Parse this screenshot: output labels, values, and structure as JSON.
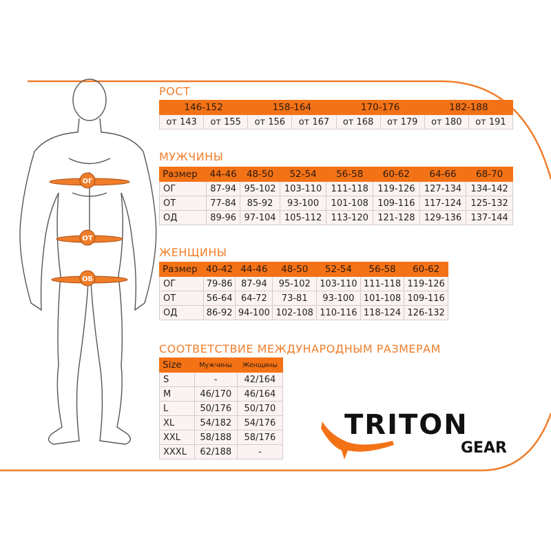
{
  "colors": {
    "accent": "#f47216",
    "cell": "#fbf3f2",
    "figure": "#555555"
  },
  "figure": {
    "bands": [
      "ОГ",
      "ОТ",
      "ОБ"
    ]
  },
  "height": {
    "title": "РОСТ",
    "ranges": [
      "146-152",
      "158-164",
      "170-176",
      "182-188"
    ],
    "values": [
      "от 143",
      "от 155",
      "от 156",
      "от 167",
      "от 168",
      "от 179",
      "от 180",
      "от 191"
    ]
  },
  "men": {
    "title": "МУЖЧИНЫ",
    "header": [
      "Размер",
      "44-46",
      "48-50",
      "52-54",
      "56-58",
      "60-62",
      "64-66",
      "68-70"
    ],
    "rows": [
      [
        "ОГ",
        "87-94",
        "95-102",
        "103-110",
        "111-118",
        "119-126",
        "127-134",
        "134-142"
      ],
      [
        "ОТ",
        "77-84",
        "85-92",
        "93-100",
        "101-108",
        "109-116",
        "117-124",
        "125-132"
      ],
      [
        "ОД",
        "89-96",
        "97-104",
        "105-112",
        "113-120",
        "121-128",
        "129-136",
        "137-144"
      ]
    ]
  },
  "women": {
    "title": "ЖЕНЩИНЫ",
    "header": [
      "Размер",
      "40-42",
      "44-46",
      "48-50",
      "52-54",
      "56-58",
      "60-62"
    ],
    "rows": [
      [
        "ОГ",
        "79-86",
        "87-94",
        "95-102",
        "103-110",
        "111-118",
        "119-126"
      ],
      [
        "ОТ",
        "56-64",
        "64-72",
        "73-81",
        "93-100",
        "101-108",
        "109-116"
      ],
      [
        "ОД",
        "86-92",
        "94-100",
        "102-108",
        "110-116",
        "118-124",
        "126-132"
      ]
    ]
  },
  "intl": {
    "title": "СООТВЕТСТВИЕ МЕЖДУНАРОДНЫМ РАЗМЕРАМ",
    "header": [
      "Size",
      "Мужчины",
      "Женщины"
    ],
    "rows": [
      [
        "S",
        "-",
        "42/164"
      ],
      [
        "M",
        "46/170",
        "46/164"
      ],
      [
        "L",
        "50/176",
        "50/170"
      ],
      [
        "XL",
        "54/182",
        "54/176"
      ],
      [
        "XXL",
        "58/188",
        "58/176"
      ],
      [
        "XXXL",
        "62/188",
        "-"
      ]
    ]
  },
  "logo": {
    "line1": "TRITON",
    "line2": "GEAR",
    "icon": "salamander-icon"
  }
}
